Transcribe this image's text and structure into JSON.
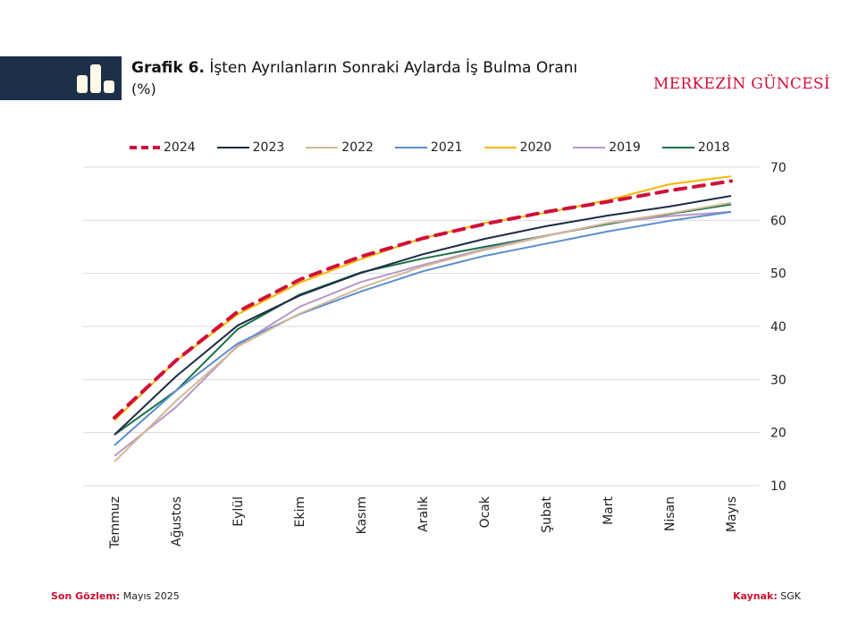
{
  "header": {
    "title_bold": "Grafik 6.",
    "title_rest": "İşten Ayrılanların Sonraki Aylarda İş Bulma Oranı",
    "subtitle": "(%)",
    "brand": "MERKEZİN GÜNCESİ",
    "icon": "bar-chart-icon"
  },
  "footer": {
    "left_key": "Son Gözlem:",
    "left_value": "Mayıs 2025",
    "right_key": "Kaynak:",
    "right_value": "SGK"
  },
  "chart_data": {
    "type": "line",
    "title": "İşten Ayrılanların Sonraki Aylarda İş Bulma Oranı",
    "xlabel": "",
    "ylabel": "%",
    "categories": [
      "Temmuz",
      "Ağustos",
      "Eylül",
      "Ekim",
      "Kasım",
      "Aralık",
      "Ocak",
      "Şubat",
      "Mart",
      "Nisan",
      "Mayıs"
    ],
    "ylim": [
      10,
      70
    ],
    "yticks": [
      10,
      20,
      30,
      40,
      50,
      60,
      70
    ],
    "y_axis_position": "right",
    "grid": true,
    "legend_position": "top",
    "series": [
      {
        "name": "2024",
        "color": "#d0103a",
        "dashed": true,
        "values": [
          22.8,
          33.6,
          42.8,
          48.8,
          53.2,
          56.6,
          59.3,
          61.6,
          63.5,
          65.6,
          67.4
        ]
      },
      {
        "name": "2023",
        "color": "#1c2b45",
        "dashed": false,
        "values": [
          19.6,
          30.6,
          40.2,
          45.8,
          50.1,
          53.6,
          56.5,
          58.9,
          60.9,
          62.6,
          64.6
        ]
      },
      {
        "name": "2022",
        "color": "#d2b896",
        "dashed": false,
        "values": [
          14.5,
          26.0,
          36.2,
          42.4,
          47.3,
          51.3,
          54.4,
          57.0,
          59.5,
          61.3,
          63.3
        ]
      },
      {
        "name": "2021",
        "color": "#5b8ed0",
        "dashed": false,
        "values": [
          17.6,
          27.9,
          36.8,
          42.3,
          46.6,
          50.4,
          53.3,
          55.6,
          57.9,
          59.9,
          61.6
        ]
      },
      {
        "name": "2020",
        "color": "#f5b800",
        "dashed": false,
        "values": [
          22.3,
          33.5,
          42.3,
          48.2,
          52.7,
          56.6,
          59.5,
          61.4,
          63.8,
          66.8,
          68.3
        ]
      },
      {
        "name": "2019",
        "color": "#b897c4",
        "dashed": false,
        "values": [
          15.6,
          24.8,
          36.4,
          43.7,
          48.4,
          51.6,
          54.6,
          57.1,
          59.5,
          60.8,
          61.6
        ]
      },
      {
        "name": "2018",
        "color": "#197147",
        "dashed": false,
        "values": [
          19.6,
          27.9,
          39.5,
          46.0,
          50.2,
          52.8,
          55.0,
          57.1,
          59.3,
          61.2,
          63.0
        ]
      }
    ]
  }
}
